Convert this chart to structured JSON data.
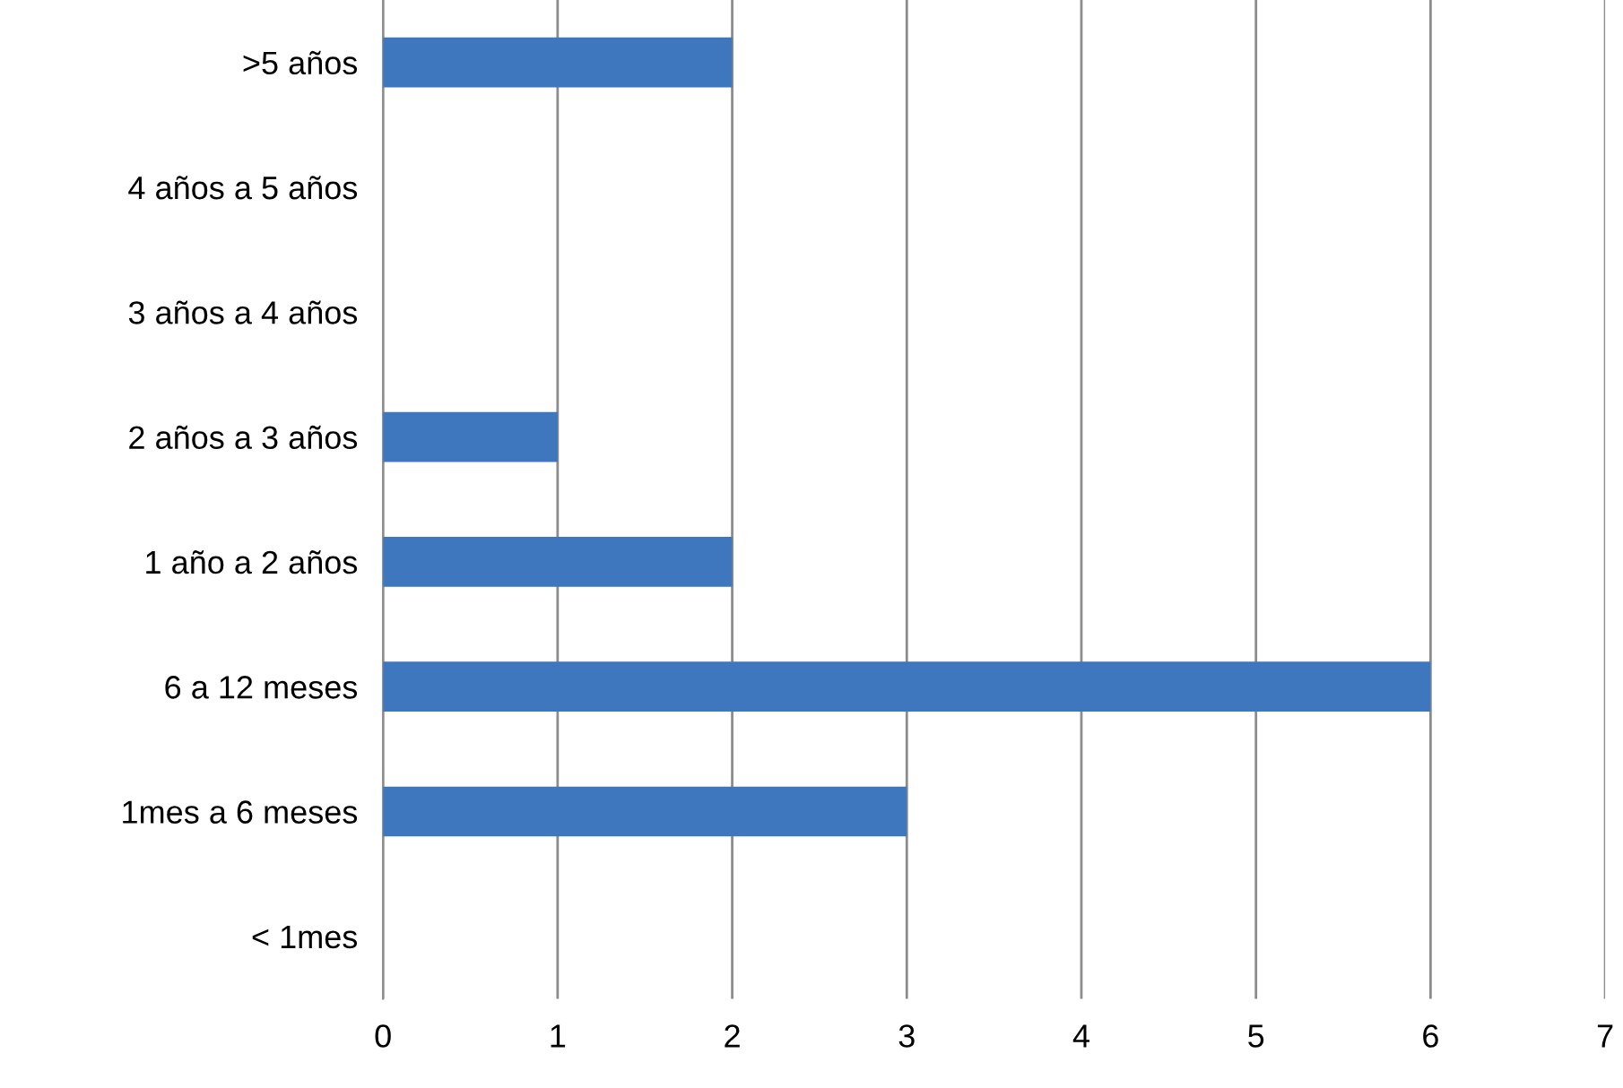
{
  "chart_data": {
    "type": "bar",
    "orientation": "horizontal",
    "categories": [
      ">5 años",
      "4 años a 5 años",
      "3 años a 4 años",
      "2 años a 3 años",
      "1 año a 2 años",
      "6 a 12 meses",
      "1mes a 6 meses",
      "< 1mes"
    ],
    "values": [
      2,
      0,
      0,
      1,
      2,
      6,
      3,
      0
    ],
    "color": "#3e77bd",
    "xlim": [
      0,
      7
    ],
    "xticks": [
      0,
      1,
      2,
      3,
      4,
      5,
      6,
      7
    ],
    "grid": "x"
  }
}
